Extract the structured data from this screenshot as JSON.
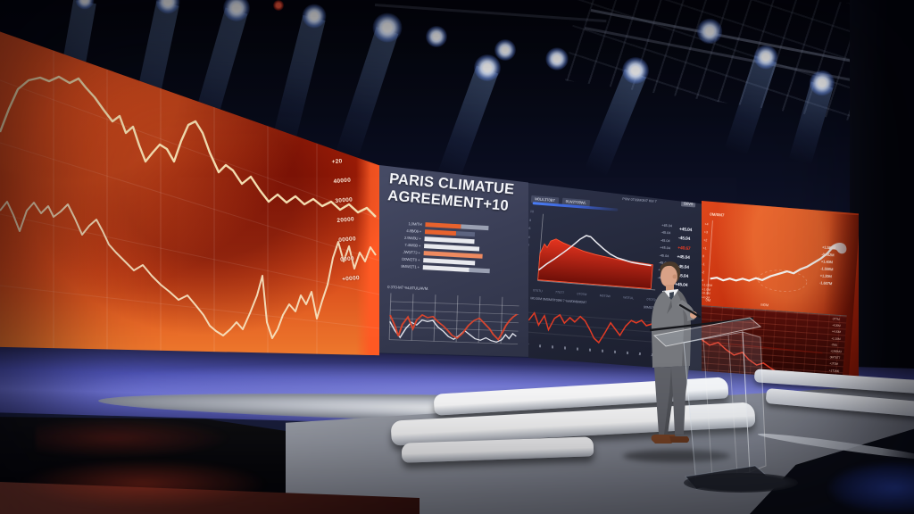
{
  "screen": {
    "left_panel": {
      "axis_labels": [
        "+20",
        "40000",
        "30000",
        "20000",
        "00000",
        "0000",
        "+0000"
      ],
      "line_color": "#f3ddb0",
      "background_color": "#c22c0e"
    },
    "center_panel": {
      "title_line1": "PARIS CLIMATUE",
      "title_line2": "AGREEMENT+10",
      "bars": [
        {
          "label": "1,0M/TH",
          "segs": [
            [
              "orange",
              38
            ],
            [
              "gray",
              30
            ]
          ]
        },
        {
          "label": "4.8B/06 +",
          "segs": [
            [
              "orange",
              34
            ],
            [
              "dim",
              20
            ]
          ]
        },
        {
          "label": "2.9W/8U +",
          "segs": [
            [
              "white",
              54
            ]
          ]
        },
        {
          "label": "7.4M/0B +",
          "segs": [
            [
              "white",
              60
            ]
          ]
        },
        {
          "label": "JW5/T73 +",
          "segs": [
            [
              "salmon",
              63
            ]
          ]
        },
        {
          "label": "D0W/2T0 +",
          "segs": [
            [
              "white",
              56
            ]
          ]
        },
        {
          "label": "8MW/2T1 +",
          "segs": [
            [
              "white",
              50
            ],
            [
              "gray",
              22
            ]
          ]
        }
      ],
      "chart_caption": "0 3T0-M7 %L8TUUAVM.",
      "background_color": "#3a3e56"
    },
    "dash_panel": {
      "chip1": "M0UL3T0B7",
      "chip2": "9LW2T09WL",
      "note": "P0W 0T09M0M7 KM 7",
      "chip3": "B0V9",
      "left_axis": [
        "10",
        "8",
        "6",
        "4",
        "2",
        "0"
      ],
      "x_axis": [
        "0T0TU",
        "7T0T7",
        "0T07M",
        "M0T0W",
        "W0TUL",
        "0T0T9"
      ],
      "inner_values": [
        "+45.04",
        "-45.04",
        "-45.04",
        "+45.04",
        "-45.04",
        "-45.04",
        "+45.04",
        "-45.04"
      ],
      "outer_values": [
        {
          "v": "+45.04",
          "red": false
        },
        {
          "v": "-45.04",
          "red": false
        },
        {
          "v": "+40.67",
          "red": true
        },
        {
          "v": "+45.04",
          "red": false
        },
        {
          "v": "+45.04",
          "red": false
        },
        {
          "v": "+45.04",
          "red": false
        },
        {
          "v": "+45.04",
          "red": false
        }
      ],
      "bottom_caption_left": "M0.00M 0M0M/0T09M 7 %M/0M9M0M7",
      "bottom_caption_right": "90M07%8L8MW 0M0T09ML",
      "background_color": "#232739"
    },
    "right_panel": {
      "title": "0M/0M7",
      "left_axis": [
        "+4",
        "+3",
        "+2",
        "+1",
        "0",
        "-1",
        "-2",
        "-4"
      ],
      "left_cluster": [
        "+1.00M",
        "+1.0M",
        "+0.0M",
        "+4.0M"
      ],
      "right_values": [
        "+1.550M",
        "-0.052M",
        "+1.40M",
        "-1.550M",
        "+1.20M",
        "-1.607M"
      ],
      "footer_left": "0M",
      "footer_center": "M0M",
      "sub_values": [
        "0T7M",
        "-4.00M",
        "+4.00M",
        "+1.10M",
        "-7M0",
        "+1M0MU",
        "0MT0T7",
        "+1T0M",
        "+1T1M0"
      ],
      "sub_value_red": "T0.0M",
      "background_color": "#c22f0d"
    }
  },
  "colors": {
    "accent_orange": "#e8622d",
    "line_red": "#e23b25",
    "cream_line": "#f3ddb0",
    "wall_purple": "#5d62c9",
    "light_halo_blue": "#9db8ff",
    "bar_white": "#e9eaef",
    "bar_gray": "#9aa0b2",
    "value_red": "#ef3d24"
  }
}
